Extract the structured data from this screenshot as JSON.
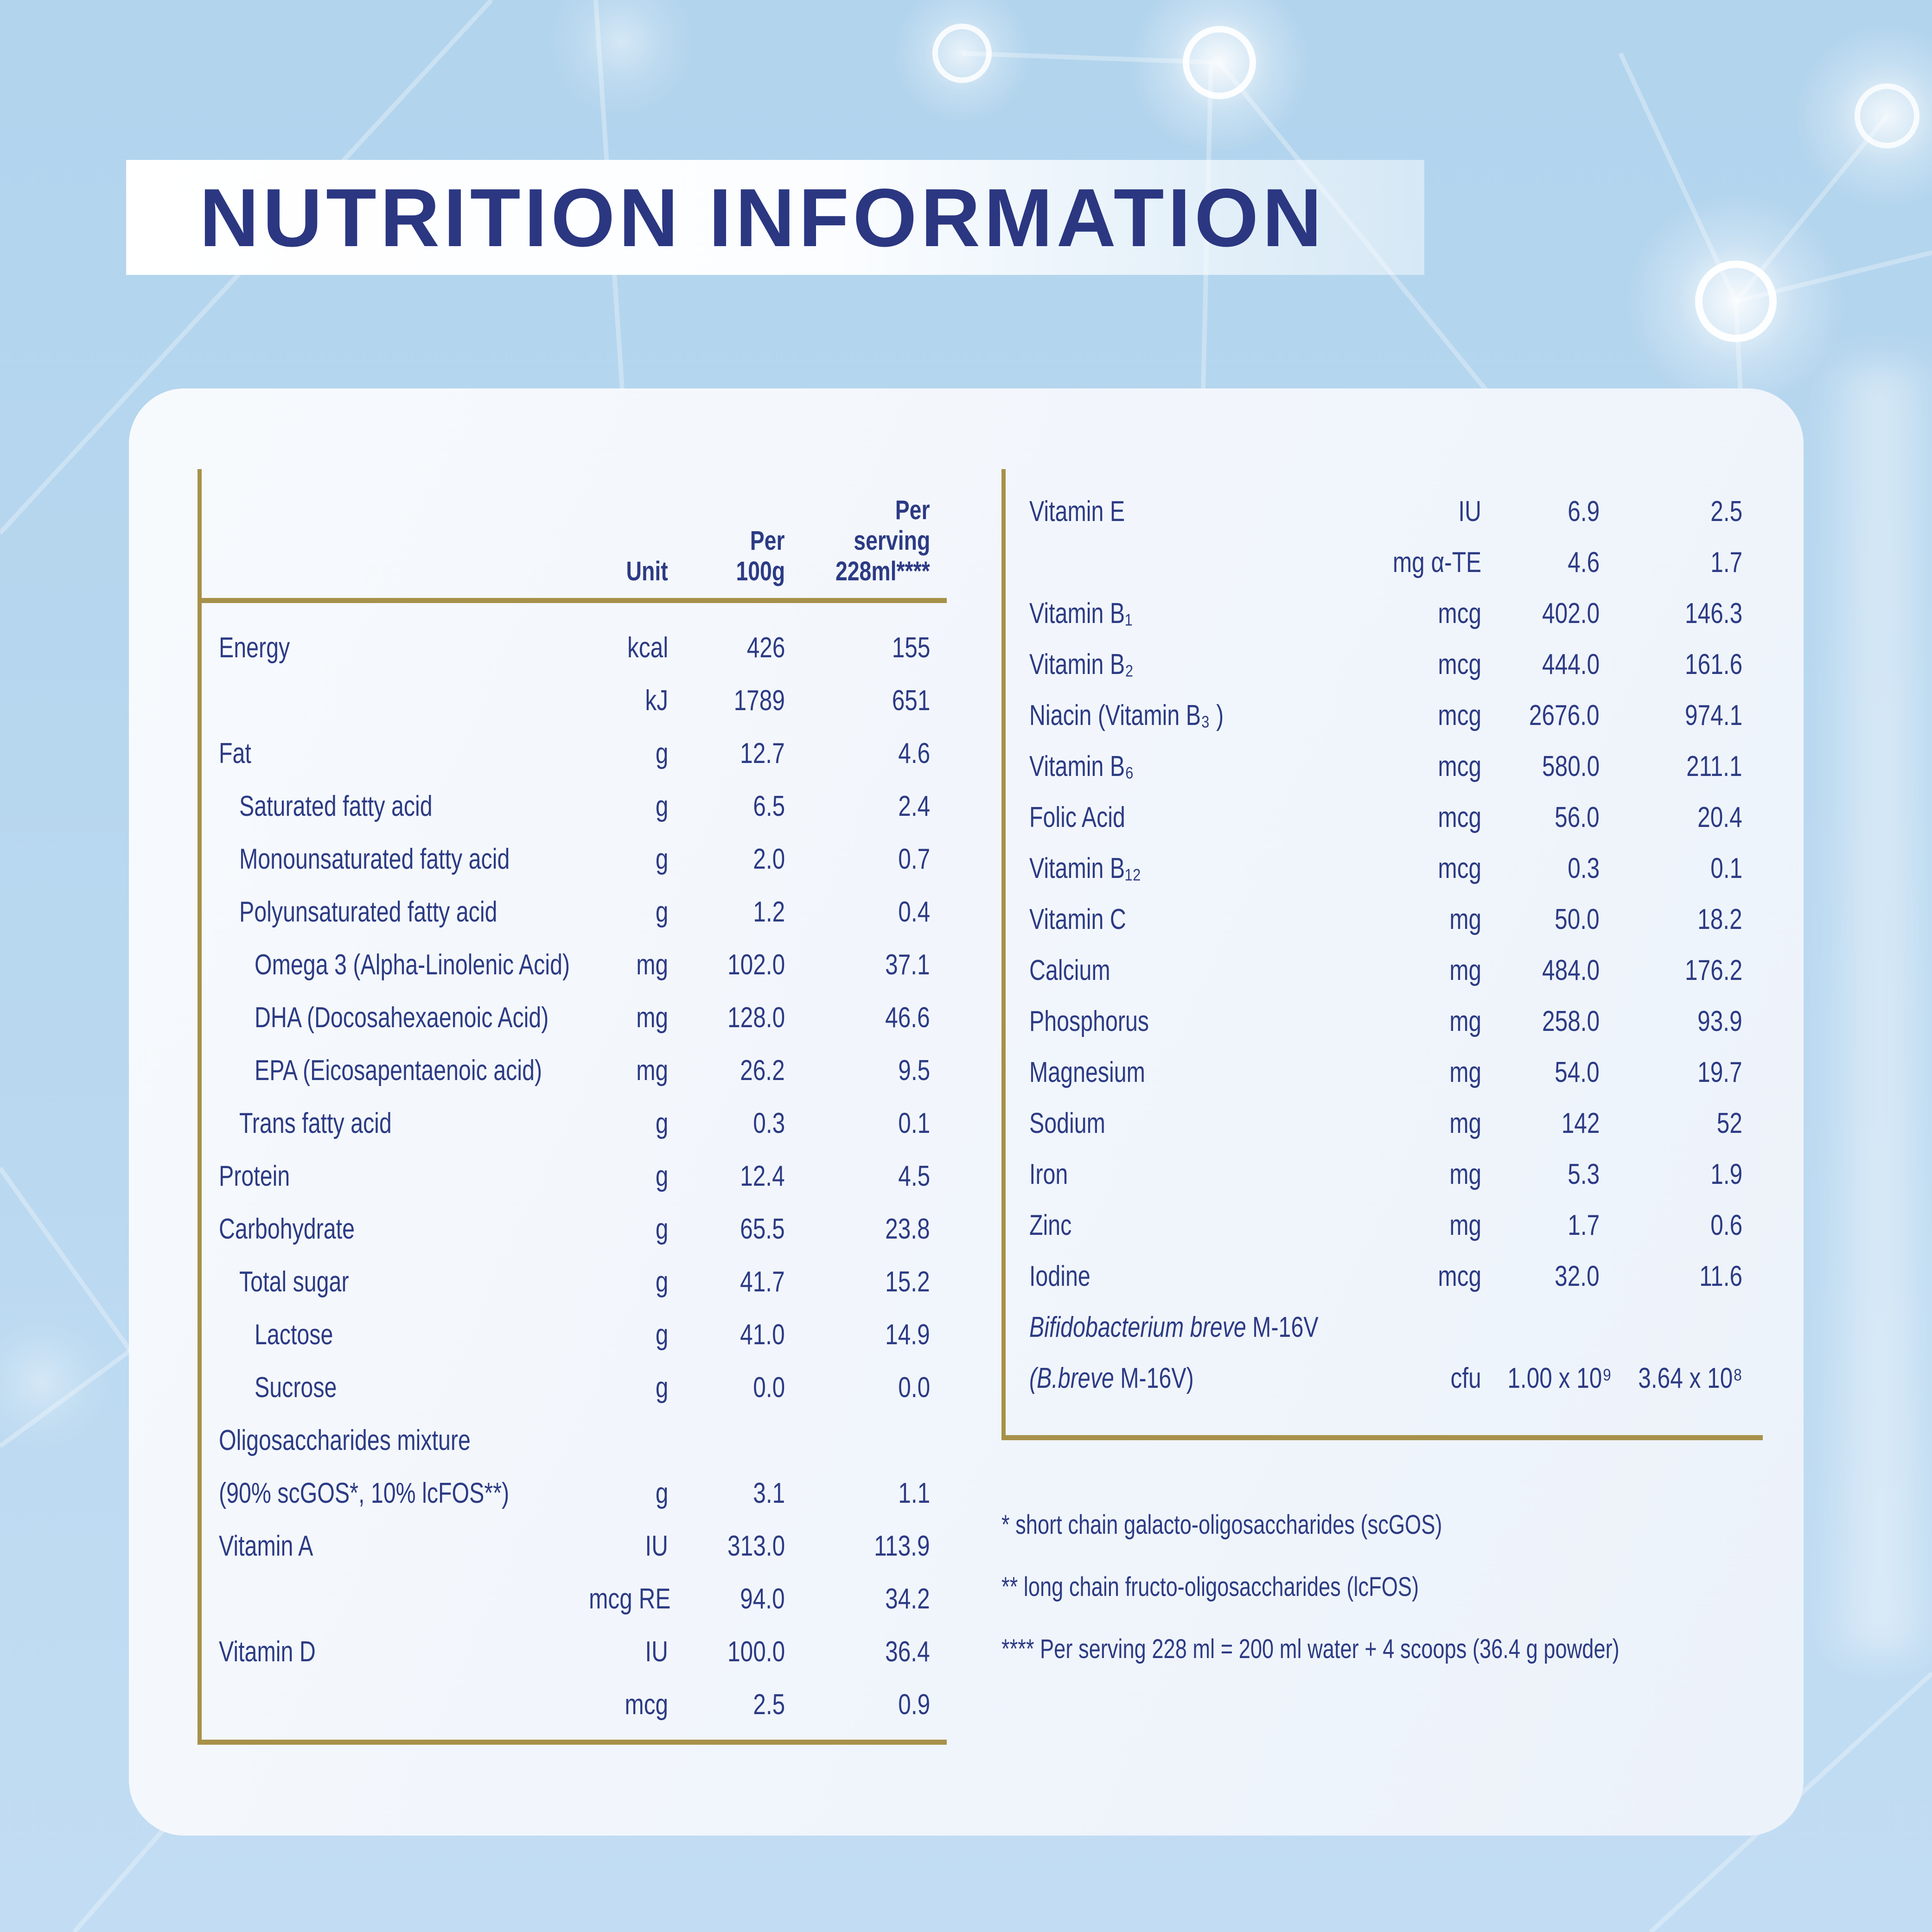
{
  "title": "NUTRITION INFORMATION",
  "colors": {
    "navy": "#2c3b84",
    "title_navy": "#2b3781",
    "gold": "#a7914a",
    "background": "#b7d8f0",
    "card": "#f2f6fc"
  },
  "left_table": {
    "header": {
      "unit": "Unit",
      "per_100g": [
        "Per",
        "100g"
      ],
      "per_serving": [
        "Per",
        "serving",
        "228ml****"
      ]
    },
    "rows": [
      {
        "label": "Energy",
        "unit": "kcal",
        "per_100g": "426",
        "per_serving": "155",
        "indent": 0
      },
      {
        "label": "",
        "unit": "kJ",
        "per_100g": "1789",
        "per_serving": "651",
        "indent": 0
      },
      {
        "label": "Fat",
        "unit": "g",
        "per_100g": "12.7",
        "per_serving": "4.6",
        "indent": 0
      },
      {
        "label": "Saturated fatty acid",
        "unit": "g",
        "per_100g": "6.5",
        "per_serving": "2.4",
        "indent": 1
      },
      {
        "label": "Monounsaturated fatty acid",
        "unit": "g",
        "per_100g": "2.0",
        "per_serving": "0.7",
        "indent": 1
      },
      {
        "label": "Polyunsaturated fatty acid",
        "unit": "g",
        "per_100g": "1.2",
        "per_serving": "0.4",
        "indent": 1
      },
      {
        "label": "Omega 3 (Alpha-Linolenic Acid)",
        "unit": "mg",
        "per_100g": "102.0",
        "per_serving": "37.1",
        "indent": 2
      },
      {
        "label": "DHA (Docosahexaenoic Acid)",
        "unit": "mg",
        "per_100g": "128.0",
        "per_serving": "46.6",
        "indent": 2
      },
      {
        "label": "EPA (Eicosapentaenoic acid)",
        "unit": "mg",
        "per_100g": "26.2",
        "per_serving": "9.5",
        "indent": 2
      },
      {
        "label": "Trans fatty acid",
        "unit": "g",
        "per_100g": "0.3",
        "per_serving": "0.1",
        "indent": 1
      },
      {
        "label": "Protein",
        "unit": "g",
        "per_100g": "12.4",
        "per_serving": "4.5",
        "indent": 0
      },
      {
        "label": "Carbohydrate",
        "unit": "g",
        "per_100g": "65.5",
        "per_serving": "23.8",
        "indent": 0
      },
      {
        "label": "Total sugar",
        "unit": "g",
        "per_100g": "41.7",
        "per_serving": "15.2",
        "indent": 1
      },
      {
        "label": "Lactose",
        "unit": "g",
        "per_100g": "41.0",
        "per_serving": "14.9",
        "indent": 2
      },
      {
        "label": "Sucrose",
        "unit": "g",
        "per_100g": "0.0",
        "per_serving": "0.0",
        "indent": 2
      },
      {
        "label": "Oligosaccharides mixture",
        "unit": "",
        "per_100g": "",
        "per_serving": "",
        "indent": 0
      },
      {
        "label": "(90% scGOS*, 10% lcFOS**)",
        "unit": "g",
        "per_100g": "3.1",
        "per_serving": "1.1",
        "indent": 0
      },
      {
        "label": "Vitamin A",
        "unit": "IU",
        "per_100g": "313.0",
        "per_serving": "113.9",
        "indent": 0
      },
      {
        "label": "",
        "unit": "mcg RE",
        "per_100g": "94.0",
        "per_serving": "34.2",
        "indent": 0
      },
      {
        "label": "Vitamin D",
        "unit": "IU",
        "per_100g": "100.0",
        "per_serving": "36.4",
        "indent": 0
      },
      {
        "label": "",
        "unit": "mcg",
        "per_100g": "2.5",
        "per_serving": "0.9",
        "indent": 0
      }
    ]
  },
  "right_table": {
    "rows": [
      {
        "label": "Vitamin E",
        "unit": "IU",
        "per_100g": "6.9",
        "per_serving": "2.5"
      },
      {
        "label": "",
        "unit": "mg α-TE",
        "per_100g": "4.6",
        "per_serving": "1.7"
      },
      {
        "label": "Vitamin B₁",
        "unit": "mcg",
        "per_100g": "402.0",
        "per_serving": "146.3"
      },
      {
        "label": "Vitamin B₂",
        "unit": "mcg",
        "per_100g": "444.0",
        "per_serving": "161.6"
      },
      {
        "label": "Niacin (Vitamin B₃ )",
        "unit": "mcg",
        "per_100g": "2676.0",
        "per_serving": "974.1"
      },
      {
        "label": "Vitamin B₆",
        "unit": "mcg",
        "per_100g": "580.0",
        "per_serving": "211.1"
      },
      {
        "label": "Folic Acid",
        "unit": "mcg",
        "per_100g": "56.0",
        "per_serving": "20.4"
      },
      {
        "label": "Vitamin B₁₂",
        "unit": "mcg",
        "per_100g": "0.3",
        "per_serving": "0.1"
      },
      {
        "label": "Vitamin C",
        "unit": "mg",
        "per_100g": "50.0",
        "per_serving": "18.2"
      },
      {
        "label": "Calcium",
        "unit": "mg",
        "per_100g": "484.0",
        "per_serving": "176.2"
      },
      {
        "label": "Phosphorus",
        "unit": "mg",
        "per_100g": "258.0",
        "per_serving": "93.9"
      },
      {
        "label": "Magnesium",
        "unit": "mg",
        "per_100g": "54.0",
        "per_serving": "19.7"
      },
      {
        "label": "Sodium",
        "unit": "mg",
        "per_100g": "142",
        "per_serving": "52"
      },
      {
        "label": "Iron",
        "unit": "mg",
        "per_100g": "5.3",
        "per_serving": "1.9"
      },
      {
        "label": "Zinc",
        "unit": "mg",
        "per_100g": "1.7",
        "per_serving": "0.6"
      },
      {
        "label": "Iodine",
        "unit": "mcg",
        "per_100g": "32.0",
        "per_serving": "11.6"
      },
      {
        "label_italic": "Bifidobacterium breve",
        "label_rest": " M-16V",
        "unit": "",
        "per_100g": "",
        "per_serving": ""
      },
      {
        "label_italic": "(B.breve",
        "label_rest": " M-16V)",
        "unit": "cfu",
        "per_100g": "1.00 x 10⁹",
        "per_serving": "3.64 x 10⁸"
      }
    ]
  },
  "footnotes": [
    "* short chain galacto-oligosaccharides (scGOS)",
    "** long chain fructo-oligosaccharides (lcFOS)",
    "**** Per serving 228 ml = 200 ml water + 4 scoops (36.4 g powder)"
  ]
}
